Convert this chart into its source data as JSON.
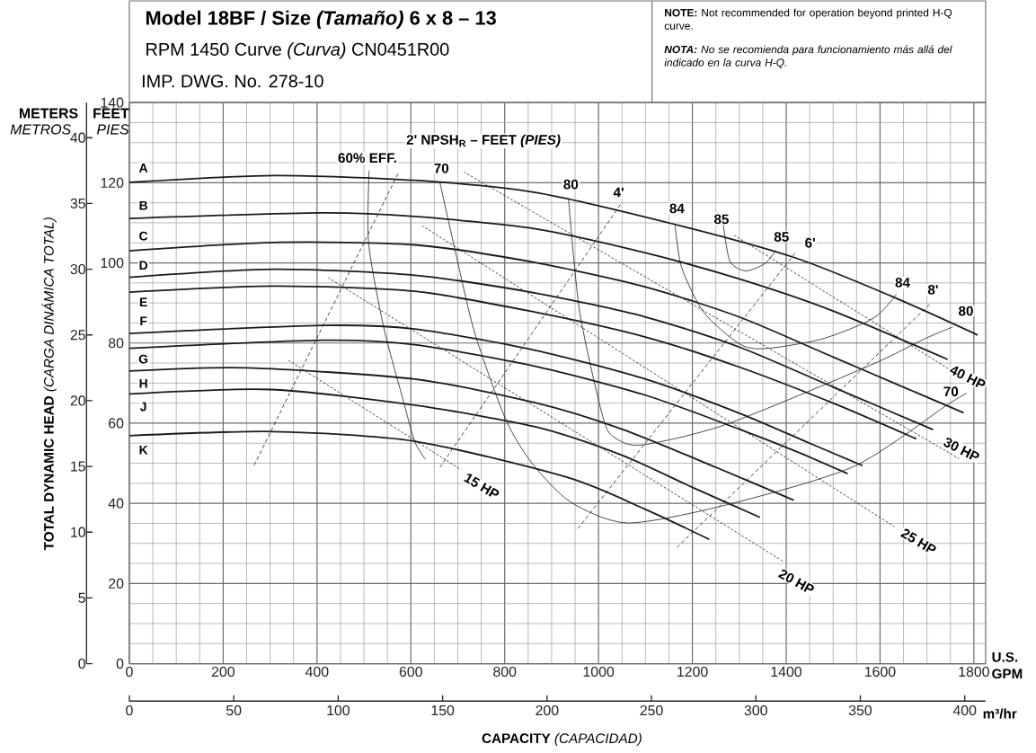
{
  "chart_data": {
    "type": "line",
    "title": "Model 18BF / Size *(Tamaño)* 6 x 8 – 13",
    "subtitle": "RPM 1450 Curve *(Curva)* CN0451R00",
    "xlabel": "**CAPACITY** *(CAPACIDAD)*",
    "y2label": "**TOTAL DYNAMIC HEAD** *(CARGA DINÁMICA TOTAL)*",
    "x2label": "m³/hr",
    "xlim": [
      0,
      1825
    ],
    "xticks": [
      0,
      200,
      400,
      600,
      800,
      1000,
      1200,
      1400,
      1600,
      1800
    ],
    "ylim": [
      0,
      140
    ],
    "yticks": [
      0,
      20,
      40,
      60,
      80,
      100,
      120,
      140
    ],
    "y2lim": [
      0,
      42.67
    ],
    "y2ticks": [
      0,
      5,
      10,
      15,
      20,
      25,
      30,
      35,
      40
    ],
    "x2lim": [
      0,
      410
    ],
    "x2ticks": [
      0,
      50,
      100,
      150,
      200,
      250,
      300,
      350,
      400
    ],
    "grid": true,
    "series": [
      {
        "color": "#1a1a1a",
        "x": [
          0,
          307,
          608,
          865,
          1163,
          1418,
          1622,
          1808
        ],
        "values": [
          120.1,
          121.8,
          120.6,
          117.6,
          109.6,
          101.3,
          91.8,
          82
        ]
      },
      {
        "color": "#1a1a1a",
        "x": [
          0,
          409,
          608,
          865,
          1100,
          1300,
          1500,
          1744
        ],
        "values": [
          111.1,
          112.5,
          111.6,
          108.5,
          102.5,
          96,
          88,
          75.9
        ]
      },
      {
        "color": "#1a1a1a",
        "x": [
          0,
          308,
          608,
          865,
          1100,
          1300,
          1500,
          1650,
          1778
        ],
        "values": [
          103,
          105.1,
          104.5,
          100.1,
          94,
          86.5,
          76.5,
          69,
          62.6
        ]
      },
      {
        "color": "#1a1a1a",
        "x": [
          0,
          308,
          608,
          865,
          1100,
          1300,
          1500,
          1713
        ],
        "values": [
          96.4,
          98.4,
          96.9,
          92.5,
          86.5,
          79,
          69,
          58.4
        ]
      },
      {
        "color": "#1a1a1a",
        "x": [
          0,
          308,
          608,
          865,
          1100,
          1300,
          1500,
          1677
        ],
        "values": [
          92.7,
          94.2,
          92.9,
          87.7,
          81.5,
          74,
          65,
          56.1
        ]
      },
      {
        "color": "#1a1a1a",
        "x": [
          0,
          409,
          608,
          865,
          1100,
          1300,
          1450,
          1563
        ],
        "values": [
          82.4,
          84.4,
          83.5,
          78.2,
          71,
          62.5,
          55,
          49.4
        ]
      },
      {
        "color": "#1a1a1a",
        "x": [
          0,
          409,
          608,
          865,
          1100,
          1300,
          1420,
          1531
        ],
        "values": [
          78.7,
          80.7,
          79.6,
          74.2,
          67,
          58.5,
          53,
          47.4
        ]
      },
      {
        "color": "#1a1a1a",
        "x": [
          0,
          250,
          608,
          865,
          1050,
          1250,
          1416
        ],
        "values": [
          73,
          73.8,
          71,
          65.1,
          58.5,
          49,
          40.8
        ]
      },
      {
        "color": "#1a1a1a",
        "x": [
          0,
          300,
          608,
          865,
          1050,
          1200,
          1344
        ],
        "values": [
          67.3,
          68.4,
          64.5,
          59.1,
          52,
          44,
          36.5
        ]
      },
      {
        "color": "#1a1a1a",
        "x": [
          0,
          307,
          608,
          933,
          1100,
          1236
        ],
        "values": [
          56.9,
          57.9,
          55.5,
          46.5,
          38.5,
          31
        ]
      },
      {
        "color": "#1a1a1a",
        "x": [
          511,
          510,
          542,
          583,
          608,
          631
        ],
        "values": [
          123,
          104.9,
          84,
          66,
          55.5,
          51
        ]
      },
      {
        "color": "#1a1a1a",
        "x": [
          662,
          694,
          736,
          802,
          859,
          941,
          1062,
          1272,
          1544,
          1741,
          1785
        ],
        "values": [
          120,
          103.3,
          82.6,
          61,
          49.9,
          40.3,
          35.1,
          39.6,
          49.2,
          64.4,
          67.5
        ]
      },
      {
        "color": "#1a1a1a",
        "x": [
          936,
          960,
          1011,
          1040,
          1095,
          1272,
          1578,
          1694,
          1755
        ],
        "values": [
          116,
          87.7,
          60.8,
          56,
          54.6,
          59.7,
          74.4,
          81,
          84
        ]
      },
      {
        "color": "#1a1a1a",
        "x": [
          1163,
          1177,
          1224,
          1300,
          1354,
          1476,
          1586,
          1635
        ],
        "values": [
          109.6,
          98.9,
          87.7,
          79.8,
          78.6,
          81,
          86.2,
          92.2
        ]
      },
      {
        "color": "#1a1a1a",
        "x": [
          1266,
          1280,
          1314,
          1354,
          1378
        ],
        "values": [
          109.6,
          100.4,
          98,
          99.8,
          103.1
        ]
      },
      {
        "color": "#1a1a1a",
        "line_style": "dashed",
        "x": [
          266,
          574
        ],
        "values": [
          49.5,
          122.6
        ]
      },
      {
        "color": "#1a1a1a",
        "line_style": "dashed",
        "x": [
          662,
          1048
        ],
        "values": [
          49,
          114.8
        ]
      },
      {
        "color": "#1a1a1a",
        "line_style": "dashed",
        "x": [
          956,
          1422
        ],
        "values": [
          33.7,
          102.9
        ]
      },
      {
        "color": "#1a1a1a",
        "line_style": "dashed",
        "x": [
          1167,
          1707
        ],
        "values": [
          29,
          89.8
        ]
      },
      {
        "color": "#1a1a1a",
        "line_style": "dotted",
        "x": [
          339,
          707
        ],
        "values": [
          75.7,
          48.4
        ]
      },
      {
        "color": "#1a1a1a",
        "line_style": "dotted",
        "x": [
          424,
          1395
        ],
        "values": [
          96.3,
          25.4
        ]
      },
      {
        "color": "#1a1a1a",
        "line_style": "dotted",
        "x": [
          624,
          1633
        ],
        "values": [
          109.3,
          34
        ]
      },
      {
        "color": "#1a1a1a",
        "line_style": "dotted",
        "x": [
          713,
          1768
        ],
        "values": [
          122.7,
          51.2
        ]
      },
      {
        "color": "#1a1a1a",
        "line_style": "dotted",
        "x": [
          1289,
          1747
        ],
        "values": [
          106.9,
          73.5
        ]
      }
    ],
    "annotations": [
      "METERS",
      "FEET",
      "METROS",
      "PIES",
      "IMP. DWG. No. 278-10",
      "**NOTE:** Not recommended for operation beyond printed H-Q curve.",
      "**NOTA:** No se recomienda para funcionamiento más allá del indicado en la curva H-Q.",
      "U.S. GPM",
      "60% EFF.",
      "2' NPSH$_{R}$ – FEET *(PIES)*",
      "15 HP",
      "20 HP",
      "25 HP",
      "30 HP",
      "40 HP",
      {
        "text": "A",
        "x": 30,
        "y": 123.7
      },
      {
        "text": "B",
        "x": 30,
        "y": 114.3
      },
      {
        "text": "C",
        "x": 30,
        "y": 106.7
      },
      {
        "text": "D",
        "x": 30,
        "y": 99.4
      },
      {
        "text": "E",
        "x": 30,
        "y": 90.2
      },
      {
        "text": "F",
        "x": 30,
        "y": 85.5
      },
      {
        "text": "G",
        "x": 30,
        "y": 76
      },
      {
        "text": "H",
        "x": 30,
        "y": 69.9
      },
      {
        "text": "J",
        "x": 30,
        "y": 64.1
      },
      {
        "text": "K",
        "x": 30,
        "y": 53.3
      },
      {
        "text": "70",
        "x": 665,
        "y": 123.6
      },
      {
        "text": "80",
        "x": 941,
        "y": 119.6
      },
      {
        "text": "84",
        "x": 1167,
        "y": 113.6
      },
      {
        "text": "85",
        "x": 1262,
        "y": 110.9
      },
      {
        "text": "85",
        "x": 1390,
        "y": 106.5
      },
      {
        "text": "84",
        "x": 1648,
        "y": 95.1
      },
      {
        "text": "80",
        "x": 1783,
        "y": 88
      },
      {
        "text": "70",
        "x": 1751,
        "y": 67.9
      },
      {
        "text": "4'",
        "x": 1043,
        "y": 117.6
      },
      {
        "text": "6'",
        "x": 1451,
        "y": 105
      },
      {
        "text": "8'",
        "x": 1713,
        "y": 93.3
      }
    ]
  }
}
